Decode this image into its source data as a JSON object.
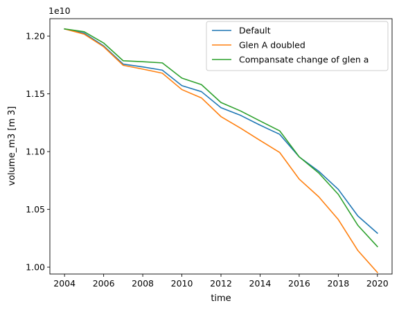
{
  "chart_data": {
    "type": "line",
    "xlabel": "time",
    "ylabel": "volume_m3 [m 3]",
    "y_offset_label": "1e10",
    "xlim": [
      2003.25,
      2020.75
    ],
    "ylim": [
      0.99405,
      1.21505
    ],
    "xticks": [
      2004,
      2006,
      2008,
      2010,
      2012,
      2014,
      2016,
      2018,
      2020
    ],
    "xtick_labels": [
      "2004",
      "2006",
      "2008",
      "2010",
      "2012",
      "2014",
      "2016",
      "2018",
      "2020"
    ],
    "yticks": [
      1.0,
      1.05,
      1.1,
      1.15,
      1.2
    ],
    "ytick_labels": [
      "1.00",
      "1.05",
      "1.10",
      "1.15",
      "1.20"
    ],
    "grid": false,
    "legend_position": "top-right",
    "x": [
      2004,
      2005,
      2006,
      2007,
      2008,
      2009,
      2010,
      2011,
      2012,
      2013,
      2014,
      2015,
      2016,
      2017,
      2018,
      2019,
      2020
    ],
    "series": [
      {
        "name": "Default",
        "color": "#1f77b4",
        "values": [
          1.2062,
          1.2025,
          1.1915,
          1.1757,
          1.1733,
          1.1705,
          1.1571,
          1.1519,
          1.138,
          1.1314,
          1.1229,
          1.115,
          1.0954,
          1.083,
          1.0673,
          1.0443,
          1.0294
        ]
      },
      {
        "name": "Glen A doubled",
        "color": "#ff7f0e",
        "values": [
          1.2062,
          1.2017,
          1.1908,
          1.1747,
          1.1714,
          1.1679,
          1.1537,
          1.1465,
          1.1303,
          1.1203,
          1.1097,
          1.0993,
          1.0762,
          1.0609,
          1.0412,
          1.0144,
          0.9954
        ]
      },
      {
        "name": "Compansate change of glen a",
        "color": "#2ca02c",
        "values": [
          1.2062,
          1.2038,
          1.194,
          1.1786,
          1.1778,
          1.1768,
          1.1636,
          1.158,
          1.1425,
          1.1352,
          1.1265,
          1.118,
          1.0955,
          1.0815,
          1.063,
          1.0362,
          1.0178
        ]
      }
    ]
  }
}
